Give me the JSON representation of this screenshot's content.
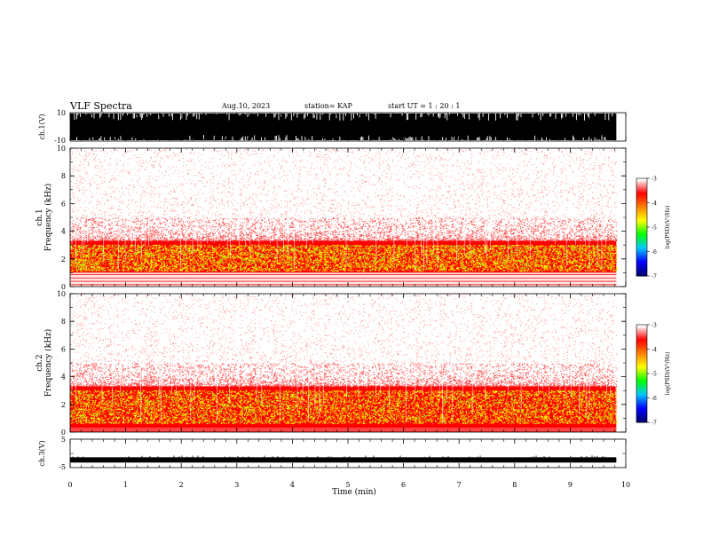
{
  "header": {
    "title": "VLF Spectra",
    "date": "Aug.10, 2023",
    "station": "station= KAP",
    "start": "start  UT =   1 : 20 : 1"
  },
  "chart_data": [
    {
      "type": "line",
      "panel": "ch1-waveform",
      "ylabel": "ch.1(V)",
      "ylim": [
        -10,
        10
      ],
      "yticks": [
        "10",
        "-10"
      ],
      "xlim": [
        0,
        10
      ],
      "data_end_min": 9.83,
      "description_of_values": "saturated waveform filling the range between -10 and 10 V",
      "color": "#000000"
    },
    {
      "type": "heatmap",
      "panel": "ch1-spectrogram",
      "ylabel": "ch.1\nFrequency  (kHz)",
      "ylim": [
        0,
        10
      ],
      "yticks": [
        "0",
        "2",
        "4",
        "6",
        "8",
        "10"
      ],
      "xlim": [
        0,
        10
      ],
      "data_end_min": 9.83,
      "intense_band_khz": [
        1.0,
        3.3
      ],
      "saturated_band_khz": [
        1.1,
        3.0
      ],
      "colorbar": {
        "label": "log(PSD)(V²/Hz)",
        "range": [
          -7,
          -3
        ],
        "ticks": [
          "-3",
          "-4",
          "-5",
          "-6",
          "-7"
        ],
        "colors": [
          "#000070",
          "#0000ff",
          "#00c8ff",
          "#00ff00",
          "#ffff00",
          "#ff8000",
          "#ff0000",
          "#ffffff"
        ]
      }
    },
    {
      "type": "heatmap",
      "panel": "ch2-spectrogram",
      "ylabel": "ch.2\nFrequency  (kHz)",
      "ylim": [
        0,
        10
      ],
      "yticks": [
        "0",
        "2",
        "4",
        "6",
        "8",
        "10"
      ],
      "xlim": [
        0,
        10
      ],
      "data_end_min": 9.83,
      "intense_band_khz": [
        0.3,
        3.3
      ],
      "saturated_band_khz": [
        0.6,
        3.0
      ],
      "colorbar": {
        "label": "log(PSD)(V²/Hz)",
        "range": [
          -7,
          -3
        ],
        "ticks": [
          "-3",
          "-4",
          "-5",
          "-6",
          "-7"
        ],
        "colors": [
          "#000070",
          "#0000ff",
          "#00c8ff",
          "#00ff00",
          "#ffff00",
          "#ff8000",
          "#ff0000",
          "#ffffff"
        ]
      }
    },
    {
      "type": "line",
      "panel": "ch3-waveform",
      "ylabel": "ch.3(V)",
      "ylim": [
        -5,
        5
      ],
      "yticks": [
        "5",
        "-5"
      ],
      "xlim": [
        0,
        10
      ],
      "data_end_min": 9.83,
      "baseline_v": -2.3,
      "color": "#000000"
    }
  ],
  "xaxis": {
    "label": "Time  (min)",
    "ticks": [
      "0",
      "1",
      "2",
      "3",
      "4",
      "5",
      "6",
      "7",
      "8",
      "9",
      "10"
    ]
  }
}
